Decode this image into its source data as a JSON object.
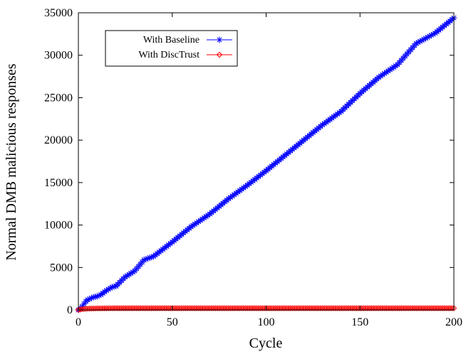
{
  "chart_data": {
    "type": "line",
    "title": "",
    "xlabel": "Cycle",
    "ylabel": "Normal DMB malicious responses",
    "xlim": [
      0,
      200
    ],
    "ylim": [
      0,
      35000
    ],
    "x_ticks": [
      "0",
      "50",
      "100",
      "150",
      "200"
    ],
    "y_ticks": [
      "0",
      "5000",
      "10000",
      "15000",
      "20000",
      "25000",
      "30000",
      "35000"
    ],
    "grid": false,
    "legend_position": "top-left",
    "series": [
      {
        "name": "With Baseline",
        "color": "#0000ff",
        "marker": "asterisk",
        "x": [
          0,
          1,
          2,
          3,
          4,
          5,
          8,
          10,
          12,
          15,
          18,
          20,
          25,
          30,
          35,
          40,
          50,
          60,
          70,
          80,
          90,
          100,
          110,
          120,
          130,
          140,
          150,
          160,
          170,
          180,
          190,
          200
        ],
        "y": [
          0,
          150,
          400,
          700,
          1000,
          1200,
          1500,
          1600,
          1800,
          2300,
          2700,
          2800,
          3900,
          4600,
          5900,
          6300,
          8000,
          9800,
          11300,
          13100,
          14700,
          16400,
          18200,
          20000,
          21800,
          23400,
          25500,
          27400,
          28900,
          31400,
          32600,
          34400
        ]
      },
      {
        "name": "With DiscTrust",
        "color": "#ff0000",
        "marker": "diamond",
        "x": [
          0,
          1,
          2,
          5,
          10,
          20,
          50,
          100,
          150,
          200
        ],
        "y": [
          0,
          50,
          100,
          150,
          180,
          200,
          200,
          200,
          200,
          200
        ]
      }
    ]
  }
}
